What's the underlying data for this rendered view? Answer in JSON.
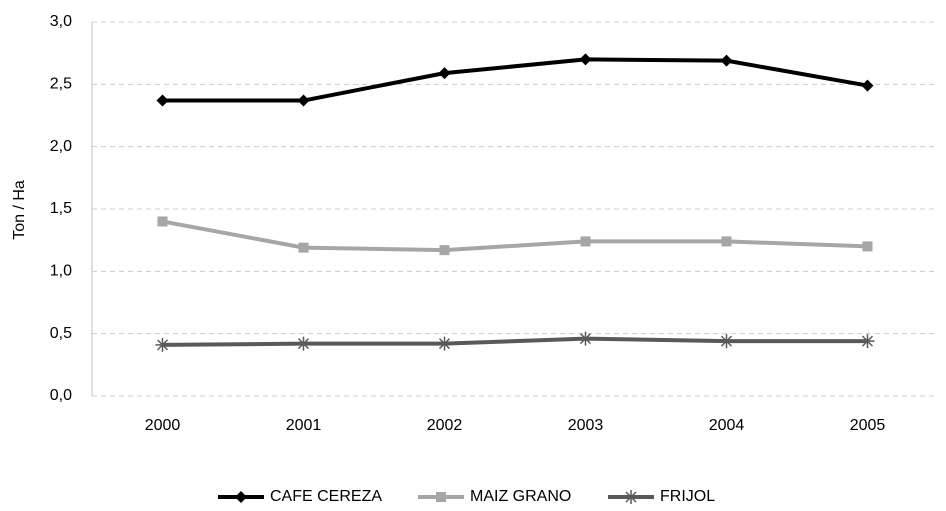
{
  "chart_data": {
    "type": "line",
    "y_label": "Ton / Ha",
    "categories": [
      "2000",
      "2001",
      "2002",
      "2003",
      "2004",
      "2005"
    ],
    "series": [
      {
        "name": "CAFE CEREZA",
        "color": "#000000",
        "marker": "diamond",
        "values": [
          2.37,
          2.37,
          2.59,
          2.7,
          2.69,
          2.49
        ]
      },
      {
        "name": "MAIZ GRANO",
        "color": "#a6a6a6",
        "marker": "square",
        "values": [
          1.4,
          1.19,
          1.17,
          1.24,
          1.24,
          1.2
        ]
      },
      {
        "name": "FRIJOL",
        "color": "#595959",
        "marker": "asterisk",
        "values": [
          0.41,
          0.42,
          0.42,
          0.46,
          0.44,
          0.44
        ]
      }
    ],
    "ylim": [
      0,
      3
    ],
    "yticks": [
      {
        "value": 0,
        "label": "0,0"
      },
      {
        "value": 0.5,
        "label": "0,5"
      },
      {
        "value": 1,
        "label": "1,0"
      },
      {
        "value": 1.5,
        "label": "1,5"
      },
      {
        "value": 2,
        "label": "2,0"
      },
      {
        "value": 2.5,
        "label": "2,5"
      },
      {
        "value": 3,
        "label": "3,0"
      }
    ],
    "grid": true,
    "legend": "bottom"
  }
}
